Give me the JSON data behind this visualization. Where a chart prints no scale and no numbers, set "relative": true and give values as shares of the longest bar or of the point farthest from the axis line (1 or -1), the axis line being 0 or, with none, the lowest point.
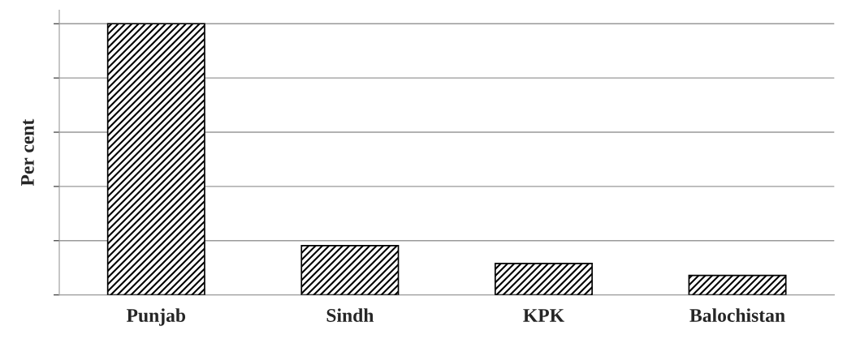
{
  "chart_data": {
    "type": "bar",
    "ylabel": "Per cent",
    "relative": true,
    "grid": "y",
    "categories": [
      "Punjab",
      "Sindh",
      "KPK",
      "Balochistan"
    ],
    "series": [
      {
        "color": "#000000",
        "values": [
          1,
          0.182,
          0.116,
          0.072
        ]
      }
    ]
  }
}
